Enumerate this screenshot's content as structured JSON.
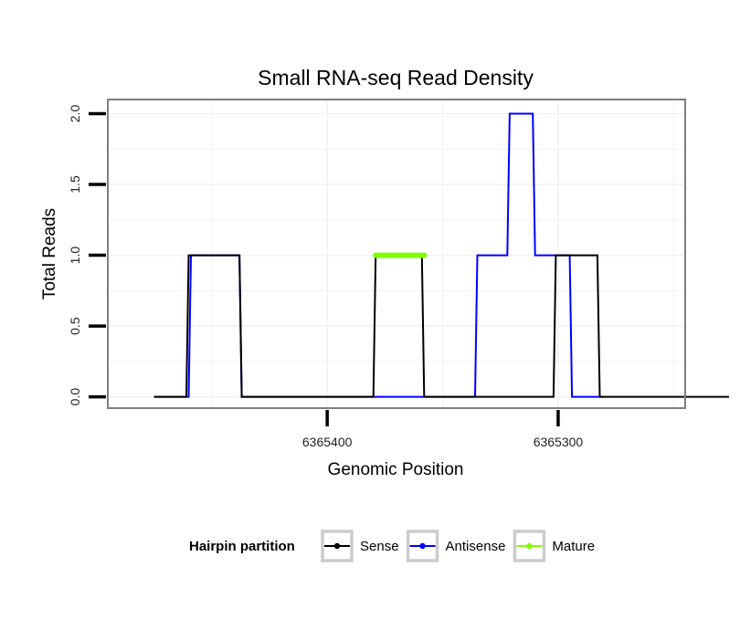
{
  "chart_data": {
    "type": "line",
    "title": "Small RNA-seq Read Density",
    "xlabel": "Genomic Position",
    "ylabel": "Total Reads",
    "x_reversed": true,
    "xlim": [
      6365495,
      6365245
    ],
    "ylim": [
      -0.08,
      2.1
    ],
    "x_ticks": [
      6365400,
      6365300
    ],
    "x_tick_labels": [
      "6365400",
      "6365300"
    ],
    "y_ticks": [
      0.0,
      0.5,
      1.0,
      1.5,
      2.0
    ],
    "y_tick_labels": [
      "0.0",
      "0.5",
      "1.0",
      "1.5",
      "2.0"
    ],
    "grid": true,
    "legend": {
      "title": "Hairpin partition",
      "position": "bottom",
      "entries": [
        {
          "name": "Sense",
          "color": "#000000"
        },
        {
          "name": "Antisense",
          "color": "#0000ff"
        },
        {
          "name": "Mature",
          "color": "#7fff00"
        }
      ]
    },
    "series": [
      {
        "name": "Antisense",
        "color": "#0000ff",
        "x": [
          6365475,
          6365460,
          6365459,
          6365438,
          6365437,
          6365380,
          6365379,
          6365336,
          6365335,
          6365322,
          6365321,
          6365311,
          6365310,
          6365300,
          6365299,
          6365295,
          6365294,
          6365280
        ],
        "y": [
          0,
          0,
          1,
          1,
          0,
          0,
          0,
          0,
          1,
          1,
          2,
          2,
          1,
          1,
          1,
          1,
          0,
          0
        ]
      },
      {
        "name": "Sense",
        "color": "#000000",
        "x": [
          6365475,
          6365461,
          6365460,
          6365438,
          6365437,
          6365380,
          6365379,
          6365359,
          6365358,
          6365302,
          6365301,
          6365283,
          6365282,
          6365226
        ],
        "y": [
          0,
          0,
          1,
          1,
          0,
          0,
          1,
          1,
          0,
          0,
          1,
          1,
          0,
          0
        ]
      },
      {
        "name": "Mature",
        "color": "#7fff00",
        "x": [
          6365379,
          6365358
        ],
        "y": [
          1,
          1
        ]
      }
    ]
  }
}
